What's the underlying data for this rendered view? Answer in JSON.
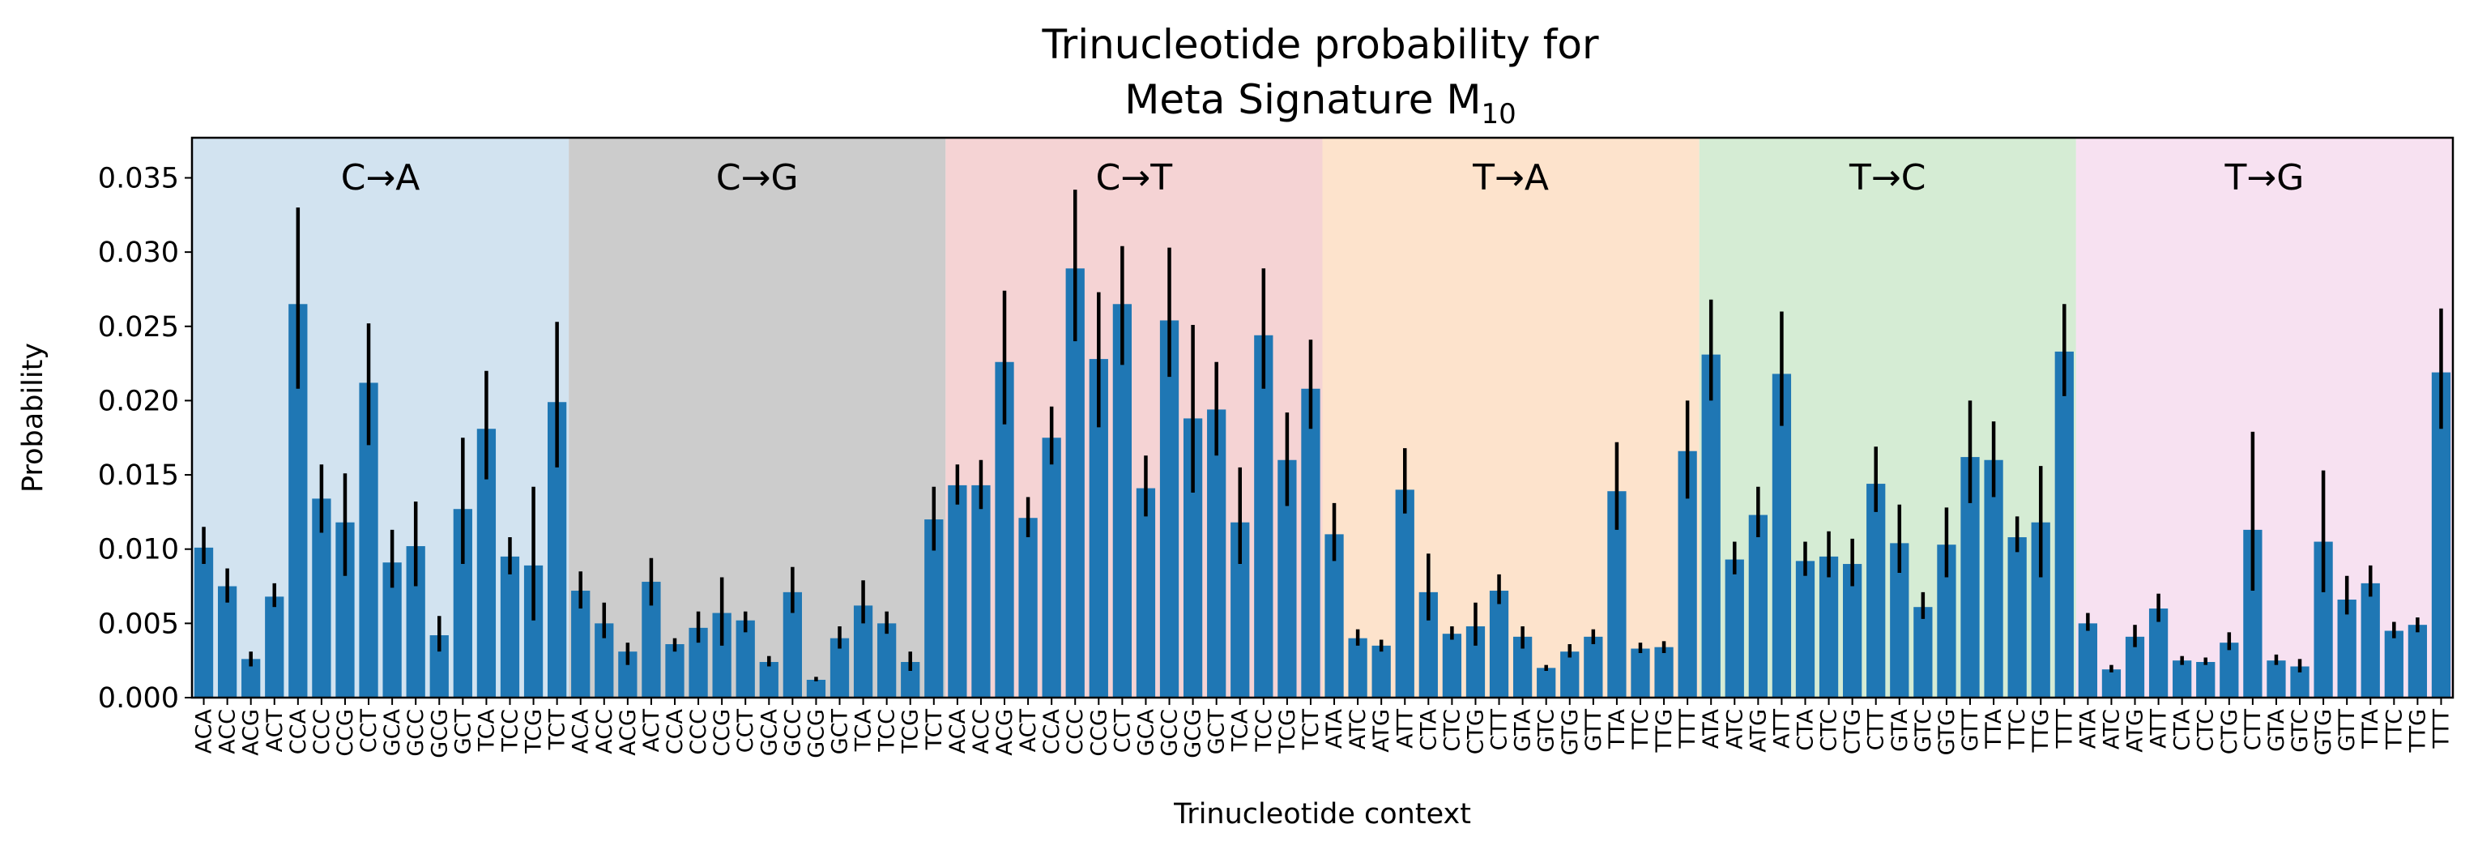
{
  "chart_data": {
    "type": "bar",
    "title_line1": "Trinucleotide probability for",
    "title_line2_prefix": "Meta Signature M",
    "title_line2_subscript": "10",
    "xlabel": "Trinucleotide context",
    "ylabel": "Probability",
    "ylim": [
      0,
      0.0377
    ],
    "yticks": [
      "0.000",
      "0.005",
      "0.010",
      "0.015",
      "0.020",
      "0.025",
      "0.030",
      "0.035"
    ],
    "ytick_values": [
      0,
      0.005,
      0.01,
      0.015,
      0.02,
      0.025,
      0.03,
      0.035
    ],
    "bar_color": "#1f77b4",
    "errorbar_color": "#000000",
    "grid": false,
    "legend": "none",
    "groups": [
      {
        "label": "C→A",
        "color": "#d2e3f0",
        "categories": [
          "ACA",
          "ACC",
          "ACG",
          "ACT",
          "CCA",
          "CCC",
          "CCG",
          "CCT",
          "GCA",
          "GCC",
          "GCG",
          "GCT",
          "TCA",
          "TCC",
          "TCG",
          "TCT"
        ],
        "values": [
          0.0101,
          0.0075,
          0.0026,
          0.0068,
          0.0265,
          0.0134,
          0.0118,
          0.0212,
          0.0091,
          0.0102,
          0.0042,
          0.0127,
          0.0181,
          0.0095,
          0.0089,
          0.0199
        ],
        "err_low": [
          0.009,
          0.0064,
          0.0021,
          0.0061,
          0.0208,
          0.0111,
          0.0082,
          0.017,
          0.0074,
          0.0075,
          0.0031,
          0.009,
          0.0147,
          0.0083,
          0.0052,
          0.0155
        ],
        "err_high": [
          0.0115,
          0.0087,
          0.0031,
          0.0077,
          0.033,
          0.0157,
          0.0151,
          0.0252,
          0.0113,
          0.0132,
          0.0055,
          0.0175,
          0.022,
          0.0108,
          0.0142,
          0.0253
        ]
      },
      {
        "label": "C→G",
        "color": "#cccccc",
        "categories": [
          "ACA",
          "ACC",
          "ACG",
          "ACT",
          "CCA",
          "CCC",
          "CCG",
          "CCT",
          "GCA",
          "GCC",
          "GCG",
          "GCT",
          "TCA",
          "TCC",
          "TCG",
          "TCT"
        ],
        "values": [
          0.0072,
          0.005,
          0.0031,
          0.0078,
          0.0036,
          0.0047,
          0.0057,
          0.0052,
          0.0024,
          0.0071,
          0.0012,
          0.004,
          0.0062,
          0.005,
          0.0024,
          0.012
        ],
        "err_low": [
          0.006,
          0.004,
          0.0022,
          0.0062,
          0.0031,
          0.0037,
          0.0035,
          0.0044,
          0.0021,
          0.0057,
          0.0011,
          0.0033,
          0.005,
          0.0043,
          0.0018,
          0.0099
        ],
        "err_high": [
          0.0085,
          0.0064,
          0.0037,
          0.0094,
          0.004,
          0.0058,
          0.0081,
          0.0058,
          0.0028,
          0.0088,
          0.0014,
          0.0048,
          0.0079,
          0.0058,
          0.0031,
          0.0142
        ]
      },
      {
        "label": "C→T",
        "color": "#f5d3d4",
        "categories": [
          "ACA",
          "ACC",
          "ACG",
          "ACT",
          "CCA",
          "CCC",
          "CCG",
          "CCT",
          "GCA",
          "GCC",
          "GCG",
          "GCT",
          "TCA",
          "TCC",
          "TCG",
          "TCT"
        ],
        "values": [
          0.0143,
          0.0143,
          0.0226,
          0.0121,
          0.0175,
          0.0289,
          0.0228,
          0.0265,
          0.0141,
          0.0254,
          0.0188,
          0.0194,
          0.0118,
          0.0244,
          0.016,
          0.0208
        ],
        "err_low": [
          0.013,
          0.0127,
          0.0184,
          0.0108,
          0.0157,
          0.024,
          0.0182,
          0.0224,
          0.0122,
          0.0216,
          0.0138,
          0.0163,
          0.009,
          0.0208,
          0.0129,
          0.0181
        ],
        "err_high": [
          0.0157,
          0.016,
          0.0274,
          0.0135,
          0.0196,
          0.0342,
          0.0273,
          0.0304,
          0.0163,
          0.0303,
          0.0251,
          0.0226,
          0.0155,
          0.0289,
          0.0192,
          0.0241
        ]
      },
      {
        "label": "T→A",
        "color": "#fde3cc",
        "categories": [
          "ATA",
          "ATC",
          "ATG",
          "ATT",
          "CTA",
          "CTC",
          "CTG",
          "CTT",
          "GTA",
          "GTC",
          "GTG",
          "GTT",
          "TTA",
          "TTC",
          "TTG",
          "TTT"
        ],
        "values": [
          0.011,
          0.004,
          0.0035,
          0.014,
          0.0071,
          0.0043,
          0.0048,
          0.0072,
          0.0041,
          0.002,
          0.0031,
          0.0041,
          0.0139,
          0.0033,
          0.0034,
          0.0166
        ],
        "err_low": [
          0.0092,
          0.0035,
          0.0031,
          0.0124,
          0.0052,
          0.0039,
          0.0035,
          0.0063,
          0.0033,
          0.0018,
          0.0027,
          0.0036,
          0.0113,
          0.003,
          0.003,
          0.0134
        ],
        "err_high": [
          0.0131,
          0.0046,
          0.0039,
          0.0168,
          0.0097,
          0.0048,
          0.0064,
          0.0083,
          0.0048,
          0.0022,
          0.0036,
          0.0046,
          0.0172,
          0.0037,
          0.0038,
          0.02
        ]
      },
      {
        "label": "T→C",
        "color": "#d5ecd4",
        "categories": [
          "ATA",
          "ATC",
          "ATG",
          "ATT",
          "CTA",
          "CTC",
          "CTG",
          "CTT",
          "GTA",
          "GTC",
          "GTG",
          "GTT",
          "TTA",
          "TTC",
          "TTG",
          "TTT"
        ],
        "values": [
          0.0231,
          0.0093,
          0.0123,
          0.0218,
          0.0092,
          0.0095,
          0.009,
          0.0144,
          0.0104,
          0.0061,
          0.0103,
          0.0162,
          0.016,
          0.0108,
          0.0118,
          0.0233
        ],
        "err_low": [
          0.02,
          0.0083,
          0.0108,
          0.0183,
          0.0082,
          0.0081,
          0.0075,
          0.0125,
          0.0084,
          0.0053,
          0.0081,
          0.0131,
          0.0135,
          0.0098,
          0.0081,
          0.0203
        ],
        "err_high": [
          0.0268,
          0.0105,
          0.0142,
          0.026,
          0.0105,
          0.0112,
          0.0107,
          0.0169,
          0.013,
          0.0071,
          0.0128,
          0.02,
          0.0186,
          0.0122,
          0.0156,
          0.0265
        ]
      },
      {
        "label": "T→G",
        "color": "#f7e1f1",
        "categories": [
          "ATA",
          "ATC",
          "ATG",
          "ATT",
          "CTA",
          "CTC",
          "CTG",
          "CTT",
          "GTA",
          "GTC",
          "GTG",
          "GTT",
          "TTA",
          "TTC",
          "TTG",
          "TTT"
        ],
        "values": [
          0.005,
          0.0019,
          0.0041,
          0.006,
          0.0025,
          0.0024,
          0.0037,
          0.0113,
          0.0025,
          0.0021,
          0.0105,
          0.0066,
          0.0077,
          0.0045,
          0.0049,
          0.0219
        ],
        "err_low": [
          0.0045,
          0.0017,
          0.0034,
          0.0051,
          0.0022,
          0.0022,
          0.0032,
          0.0072,
          0.0022,
          0.0017,
          0.0071,
          0.0056,
          0.0068,
          0.004,
          0.0044,
          0.0181
        ],
        "err_high": [
          0.0057,
          0.0022,
          0.0049,
          0.007,
          0.0028,
          0.0027,
          0.0044,
          0.0179,
          0.0029,
          0.0026,
          0.0153,
          0.0082,
          0.0089,
          0.0051,
          0.0054,
          0.0262
        ]
      }
    ]
  }
}
